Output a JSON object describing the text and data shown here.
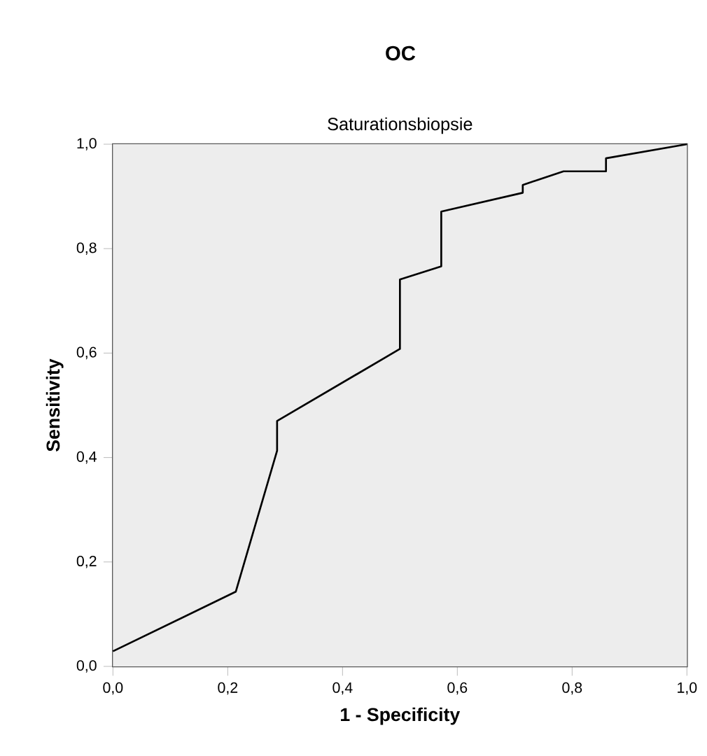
{
  "chart_data": {
    "type": "line",
    "title": "OC",
    "subtitle": "Saturationsbiopsie",
    "xlabel": "1 - Specificity",
    "ylabel": "Sensitivity",
    "x": [
      0,
      0.214,
      0.286,
      0.286,
      0.5,
      0.5,
      0.572,
      0.572,
      0.714,
      0.714,
      0.785,
      0.859,
      0.859,
      1
    ],
    "series": [
      {
        "color": "#000000",
        "values": [
          0.029,
          0.143,
          0.413,
          0.47,
          0.608,
          0.741,
          0.766,
          0.871,
          0.907,
          0.922,
          0.948,
          0.948,
          0.973,
          1
        ]
      }
    ],
    "xlim": [
      0,
      1
    ],
    "ylim": [
      0,
      1
    ],
    "xticks": [
      {
        "value": 0,
        "label": "0,0"
      },
      {
        "value": 0.2,
        "label": "0,2"
      },
      {
        "value": 0.4,
        "label": "0,4"
      },
      {
        "value": 0.6,
        "label": "0,6"
      },
      {
        "value": 0.8,
        "label": "0,8"
      },
      {
        "value": 1,
        "label": "1,0"
      }
    ],
    "yticks": [
      {
        "value": 0,
        "label": "0,0"
      },
      {
        "value": 0.2,
        "label": "0,2"
      },
      {
        "value": 0.4,
        "label": "0,4"
      },
      {
        "value": 0.6,
        "label": "0,6"
      },
      {
        "value": 0.8,
        "label": "0,8"
      },
      {
        "value": 1,
        "label": "1,0"
      }
    ],
    "marker": "none",
    "line_style": "solid"
  }
}
